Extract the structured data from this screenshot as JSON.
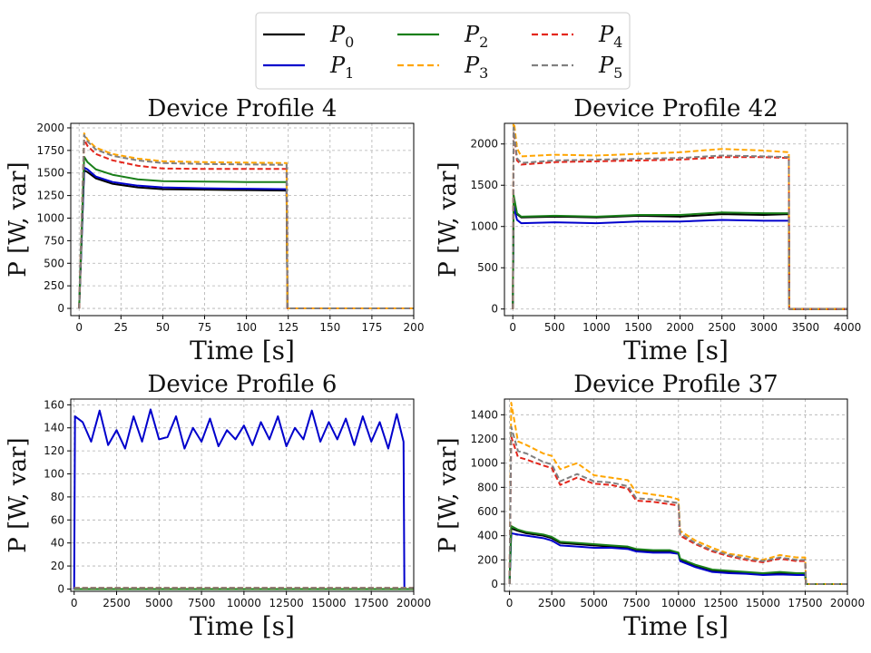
{
  "legend": {
    "entries": [
      {
        "base": "P",
        "sub": "0",
        "color": "#000000",
        "dash": false
      },
      {
        "base": "P",
        "sub": "1",
        "color": "#0000cc",
        "dash": false
      },
      {
        "base": "P",
        "sub": "2",
        "color": "#1a7f1a",
        "dash": false
      },
      {
        "base": "P",
        "sub": "3",
        "color": "#ffa500",
        "dash": true
      },
      {
        "base": "P",
        "sub": "4",
        "color": "#e3261c",
        "dash": true
      },
      {
        "base": "P",
        "sub": "5",
        "color": "#808080",
        "dash": true
      }
    ]
  },
  "chart_data": [
    {
      "type": "line",
      "title": "Device Profile 4",
      "xlabel": "Time [s]",
      "ylabel": "P [W, var]",
      "xlim": [
        -5,
        200
      ],
      "ylim": [
        -80,
        2050
      ],
      "xticks": [
        0,
        25,
        50,
        75,
        100,
        125,
        150,
        175,
        200
      ],
      "yticks": [
        0,
        250,
        500,
        750,
        1000,
        1250,
        1500,
        1750,
        2000
      ],
      "grid": true,
      "series": [
        {
          "name": "P0",
          "x": [
            0,
            3,
            5,
            10,
            20,
            35,
            50,
            75,
            100,
            124,
            124.5,
            200
          ],
          "y": [
            0,
            1530,
            1510,
            1440,
            1380,
            1340,
            1320,
            1315,
            1310,
            1305,
            0,
            0
          ]
        },
        {
          "name": "P1",
          "x": [
            0,
            3,
            5,
            10,
            20,
            35,
            50,
            75,
            100,
            124,
            124.5,
            200
          ],
          "y": [
            0,
            1560,
            1540,
            1460,
            1400,
            1360,
            1340,
            1330,
            1325,
            1320,
            0,
            0
          ]
        },
        {
          "name": "P2",
          "x": [
            0,
            3,
            5,
            10,
            20,
            35,
            50,
            75,
            100,
            124,
            124.5,
            200
          ],
          "y": [
            0,
            1680,
            1620,
            1540,
            1480,
            1430,
            1410,
            1405,
            1400,
            1400,
            0,
            0
          ]
        },
        {
          "name": "P3",
          "x": [
            0,
            3,
            5,
            10,
            20,
            35,
            50,
            75,
            100,
            124,
            124.5,
            200
          ],
          "y": [
            0,
            1940,
            1870,
            1780,
            1710,
            1660,
            1630,
            1620,
            1615,
            1610,
            0,
            0
          ]
        },
        {
          "name": "P4",
          "x": [
            0,
            3,
            5,
            10,
            20,
            35,
            50,
            75,
            100,
            124,
            124.5,
            200
          ],
          "y": [
            0,
            1870,
            1800,
            1710,
            1640,
            1580,
            1550,
            1545,
            1545,
            1545,
            0,
            0
          ]
        },
        {
          "name": "P5",
          "x": [
            0,
            3,
            5,
            10,
            20,
            35,
            50,
            75,
            100,
            124,
            124.5,
            200
          ],
          "y": [
            0,
            1920,
            1850,
            1760,
            1690,
            1640,
            1610,
            1600,
            1595,
            1590,
            0,
            0
          ]
        }
      ]
    },
    {
      "type": "line",
      "title": "Device Profile 42",
      "xlabel": "Time [s]",
      "ylabel": "P [W, var]",
      "xlim": [
        -100,
        4000
      ],
      "ylim": [
        -80,
        2250
      ],
      "xticks": [
        0,
        500,
        1000,
        1500,
        2000,
        2500,
        3000,
        3500,
        4000
      ],
      "yticks": [
        0,
        500,
        1000,
        1500,
        2000
      ],
      "grid": true,
      "series": [
        {
          "name": "P0",
          "x": [
            0,
            10,
            50,
            100,
            500,
            1000,
            1500,
            2000,
            2500,
            3000,
            3300,
            3305,
            4000
          ],
          "y": [
            0,
            1350,
            1150,
            1110,
            1120,
            1110,
            1130,
            1120,
            1150,
            1140,
            1150,
            0,
            0
          ]
        },
        {
          "name": "P1",
          "x": [
            0,
            10,
            50,
            100,
            500,
            1000,
            1500,
            2000,
            2500,
            3000,
            3300,
            3305,
            4000
          ],
          "y": [
            0,
            1250,
            1080,
            1040,
            1050,
            1040,
            1060,
            1060,
            1080,
            1070,
            1070,
            0,
            0
          ]
        },
        {
          "name": "P2",
          "x": [
            0,
            10,
            50,
            100,
            500,
            1000,
            1500,
            2000,
            2500,
            3000,
            3300,
            3305,
            4000
          ],
          "y": [
            0,
            1380,
            1160,
            1120,
            1130,
            1120,
            1140,
            1140,
            1170,
            1160,
            1160,
            0,
            0
          ]
        },
        {
          "name": "P3",
          "x": [
            0,
            10,
            50,
            100,
            500,
            1000,
            1500,
            2000,
            2500,
            3000,
            3300,
            3305,
            4000
          ],
          "y": [
            0,
            2300,
            1950,
            1850,
            1870,
            1860,
            1880,
            1900,
            1940,
            1920,
            1900,
            0,
            0
          ]
        },
        {
          "name": "P4",
          "x": [
            0,
            10,
            50,
            100,
            500,
            1000,
            1500,
            2000,
            2500,
            3000,
            3300,
            3305,
            4000
          ],
          "y": [
            0,
            2150,
            1800,
            1750,
            1780,
            1790,
            1800,
            1810,
            1840,
            1840,
            1830,
            0,
            0
          ]
        },
        {
          "name": "P5",
          "x": [
            0,
            10,
            50,
            100,
            500,
            1000,
            1500,
            2000,
            2500,
            3000,
            3300,
            3305,
            4000
          ],
          "y": [
            0,
            2200,
            1830,
            1770,
            1800,
            1810,
            1820,
            1830,
            1860,
            1850,
            1840,
            0,
            0
          ]
        }
      ]
    },
    {
      "type": "line",
      "title": "Device Profile 6",
      "xlabel": "Time [s]",
      "ylabel": "P [W, var]",
      "xlim": [
        -200,
        20000
      ],
      "ylim": [
        -2,
        165
      ],
      "xticks": [
        0,
        2500,
        5000,
        7500,
        10000,
        12500,
        15000,
        17500,
        20000
      ],
      "yticks": [
        0,
        20,
        40,
        60,
        80,
        100,
        120,
        140,
        160
      ],
      "grid": true,
      "series": [
        {
          "name": "P0",
          "x": [
            0,
            20000
          ],
          "y": [
            0,
            0
          ]
        },
        {
          "name": "P1",
          "x": [
            0,
            50,
            500,
            1000,
            1500,
            2000,
            2500,
            3000,
            3500,
            4000,
            4500,
            5000,
            5500,
            6000,
            6500,
            7000,
            7500,
            8000,
            8500,
            9000,
            9500,
            10000,
            10500,
            11000,
            11500,
            12000,
            12500,
            13000,
            13500,
            14000,
            14500,
            15000,
            15500,
            16000,
            16500,
            17000,
            17500,
            18000,
            18500,
            19000,
            19400,
            19450,
            20000
          ],
          "y": [
            0,
            150,
            145,
            128,
            155,
            125,
            138,
            122,
            150,
            128,
            156,
            130,
            132,
            150,
            122,
            140,
            128,
            148,
            124,
            138,
            130,
            142,
            125,
            145,
            130,
            150,
            124,
            140,
            130,
            155,
            128,
            145,
            130,
            148,
            125,
            150,
            128,
            145,
            122,
            152,
            128,
            0,
            0
          ]
        },
        {
          "name": "P2",
          "x": [
            0,
            20000
          ],
          "y": [
            0,
            0
          ]
        },
        {
          "name": "P3",
          "x": [
            0,
            20000
          ],
          "y": [
            1,
            1
          ]
        },
        {
          "name": "P4",
          "x": [
            0,
            20000
          ],
          "y": [
            1,
            1
          ]
        },
        {
          "name": "P5",
          "x": [
            0,
            20000
          ],
          "y": [
            1,
            1
          ]
        }
      ]
    },
    {
      "type": "line",
      "title": "Device Profile 37",
      "xlabel": "Time [s]",
      "ylabel": "P [W, var]",
      "xlim": [
        -300,
        20000
      ],
      "ylim": [
        -60,
        1530
      ],
      "xticks": [
        0,
        2500,
        5000,
        7500,
        10000,
        12500,
        15000,
        17500,
        20000
      ],
      "yticks": [
        0,
        200,
        400,
        600,
        800,
        1000,
        1200,
        1400
      ],
      "grid": true,
      "series": [
        {
          "name": "P0",
          "x": [
            0,
            100,
            500,
            1000,
            2000,
            2500,
            3000,
            4000,
            5000,
            6000,
            7000,
            7500,
            8500,
            9500,
            10000,
            10100,
            11000,
            12000,
            13000,
            14000,
            15000,
            16000,
            17000,
            17500,
            17550,
            20000
          ],
          "y": [
            0,
            460,
            440,
            420,
            400,
            380,
            340,
            330,
            320,
            310,
            300,
            280,
            270,
            270,
            250,
            200,
            150,
            110,
            100,
            90,
            80,
            90,
            80,
            80,
            0,
            0
          ]
        },
        {
          "name": "P1",
          "x": [
            0,
            100,
            500,
            1000,
            2000,
            2500,
            3000,
            4000,
            5000,
            6000,
            7000,
            7500,
            8500,
            9500,
            10000,
            10100,
            11000,
            12000,
            13000,
            14000,
            15000,
            16000,
            17000,
            17500,
            17550,
            20000
          ],
          "y": [
            0,
            420,
            410,
            400,
            380,
            360,
            320,
            310,
            300,
            300,
            290,
            270,
            260,
            260,
            250,
            190,
            140,
            100,
            90,
            85,
            75,
            80,
            75,
            75,
            0,
            0
          ]
        },
        {
          "name": "P2",
          "x": [
            0,
            100,
            500,
            1000,
            2000,
            2500,
            3000,
            4000,
            5000,
            6000,
            7000,
            7500,
            8500,
            9500,
            10000,
            10100,
            11000,
            12000,
            13000,
            14000,
            15000,
            16000,
            17000,
            17500,
            17550,
            20000
          ],
          "y": [
            0,
            480,
            450,
            430,
            410,
            390,
            350,
            340,
            330,
            320,
            310,
            290,
            280,
            280,
            260,
            210,
            160,
            120,
            110,
            100,
            90,
            100,
            90,
            90,
            0,
            0
          ]
        },
        {
          "name": "P3",
          "x": [
            0,
            100,
            500,
            1000,
            2000,
            2500,
            3000,
            4000,
            5000,
            6000,
            7000,
            7500,
            8500,
            9500,
            10000,
            10100,
            11000,
            12000,
            13000,
            14000,
            15000,
            16000,
            17000,
            17500,
            17550,
            20000
          ],
          "y": [
            0,
            1500,
            1180,
            1150,
            1080,
            1060,
            950,
            1000,
            900,
            880,
            860,
            760,
            740,
            720,
            700,
            440,
            360,
            300,
            250,
            230,
            200,
            240,
            220,
            220,
            0,
            0
          ]
        },
        {
          "name": "P4",
          "x": [
            0,
            100,
            500,
            1000,
            2000,
            2500,
            3000,
            4000,
            5000,
            6000,
            7000,
            7500,
            8500,
            9500,
            10000,
            10100,
            11000,
            12000,
            13000,
            14000,
            15000,
            16000,
            17000,
            17500,
            17550,
            20000
          ],
          "y": [
            0,
            1220,
            1050,
            1030,
            980,
            960,
            820,
            880,
            830,
            820,
            790,
            690,
            680,
            660,
            650,
            400,
            330,
            270,
            230,
            200,
            180,
            210,
            190,
            190,
            0,
            0
          ]
        },
        {
          "name": "P5",
          "x": [
            0,
            100,
            500,
            1000,
            2000,
            2500,
            3000,
            4000,
            5000,
            6000,
            7000,
            7500,
            8500,
            9500,
            10000,
            10100,
            11000,
            12000,
            13000,
            14000,
            15000,
            16000,
            17000,
            17500,
            17550,
            20000
          ],
          "y": [
            0,
            1300,
            1100,
            1080,
            1010,
            990,
            850,
            910,
            850,
            840,
            810,
            710,
            700,
            680,
            670,
            420,
            340,
            280,
            240,
            210,
            190,
            220,
            200,
            200,
            0,
            0
          ]
        }
      ]
    }
  ]
}
